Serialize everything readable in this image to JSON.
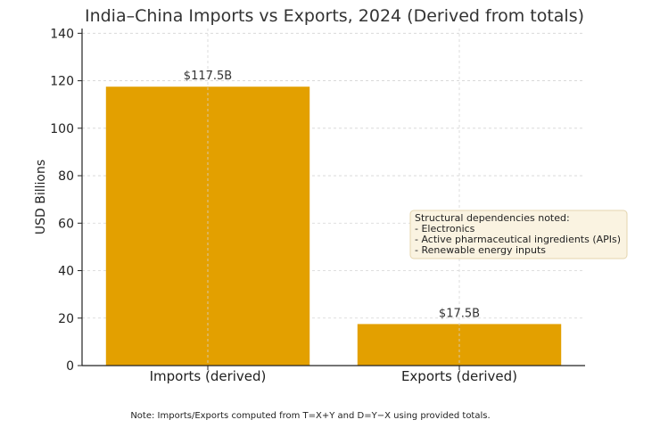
{
  "chart_data": {
    "type": "bar",
    "title": "India–China Imports vs Exports, 2024 (Derived from totals)",
    "xlabel": "",
    "ylabel": "USD Billions",
    "categories": [
      "Imports (derived)",
      "Exports (derived)"
    ],
    "values": [
      117.5,
      17.5
    ],
    "data_labels": [
      "$117.5B",
      "$17.5B"
    ],
    "ylim": [
      0,
      142
    ],
    "yticks": [
      0,
      20,
      40,
      60,
      80,
      100,
      120,
      140
    ],
    "grid": true,
    "bar_color": "#E3A000",
    "annotation": {
      "lines": [
        "Structural dependencies noted:",
        "- Electronics",
        "- Active pharmaceutical ingredients (APIs)",
        "- Renewable energy inputs"
      ],
      "background": "#FAF3E1",
      "border": "#E4D5AE"
    },
    "note": "Note: Imports/Exports computed from T=X+Y and D=Y−X using provided totals."
  }
}
